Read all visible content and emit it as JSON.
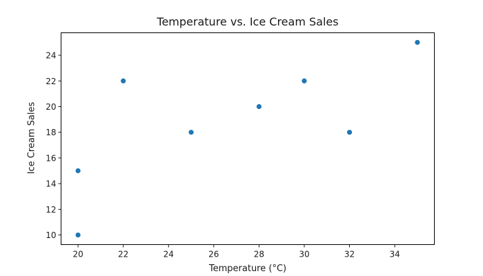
{
  "chart_data": {
    "type": "scatter",
    "title": "Temperature vs. Ice Cream Sales",
    "xlabel": "Temperature (°C)",
    "ylabel": "Ice Cream Sales",
    "x": [
      20,
      20,
      22,
      25,
      28,
      30,
      32,
      35
    ],
    "y": [
      15,
      10,
      22,
      18,
      20,
      22,
      18,
      25
    ],
    "series": [
      {
        "name": "Ice Cream Sales",
        "color": "#1f77b4",
        "points": [
          {
            "x": 20,
            "y": 15
          },
          {
            "x": 20,
            "y": 10
          },
          {
            "x": 22,
            "y": 22
          },
          {
            "x": 25,
            "y": 18
          },
          {
            "x": 28,
            "y": 20
          },
          {
            "x": 30,
            "y": 22
          },
          {
            "x": 32,
            "y": 18
          },
          {
            "x": 35,
            "y": 25
          }
        ]
      }
    ],
    "xticks": [
      20,
      22,
      24,
      26,
      28,
      30,
      32,
      34
    ],
    "yticks": [
      10,
      12,
      14,
      16,
      18,
      20,
      22,
      24
    ],
    "xlim": [
      19.25,
      35.75
    ],
    "ylim": [
      9.25,
      25.75
    ],
    "grid": false,
    "legend": null
  }
}
